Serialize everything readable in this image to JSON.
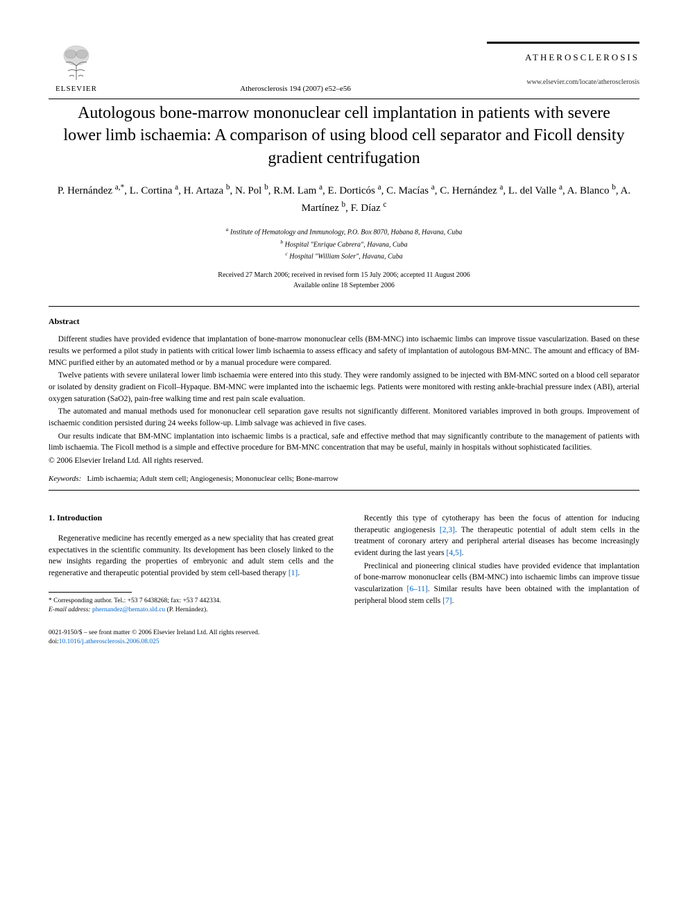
{
  "header": {
    "publisher": "ELSEVIER",
    "journal_name": "ATHEROSCLEROSIS",
    "citation": "Atherosclerosis 194 (2007) e52–e56",
    "url": "www.elsevier.com/locate/atherosclerosis"
  },
  "title": "Autologous bone-marrow mononuclear cell implantation in patients with severe lower limb ischaemia: A comparison of using blood cell separator and Ficoll density gradient centrifugation",
  "authors_html": "P. Hernández <sup>a,*</sup>, L. Cortina <sup>a</sup>, H. Artaza <sup>b</sup>, N. Pol <sup>b</sup>, R.M. Lam <sup>a</sup>, E. Dorticós <sup>a</sup>, C. Macías <sup>a</sup>, C. Hernández <sup>a</sup>, L. del Valle <sup>a</sup>, A. Blanco <sup>b</sup>, A. Martínez <sup>b</sup>, F. Díaz <sup>c</sup>",
  "affiliations": [
    "a Institute of Hematology and Immunology, P.O. Box 8070, Habana 8, Havana, Cuba",
    "b Hospital \"Enrique Cabrera\", Havana, Cuba",
    "c Hospital \"William Soler\", Havana, Cuba"
  ],
  "dates": {
    "history": "Received 27 March 2006; received in revised form 15 July 2006; accepted 11 August 2006",
    "online": "Available online 18 September 2006"
  },
  "abstract": {
    "heading": "Abstract",
    "paragraphs": [
      "Different studies have provided evidence that implantation of bone-marrow mononuclear cells (BM-MNC) into ischaemic limbs can improve tissue vascularization. Based on these results we performed a pilot study in patients with critical lower limb ischaemia to assess efficacy and safety of implantation of autologous BM-MNC. The amount and efficacy of BM-MNC purified either by an automated method or by a manual procedure were compared.",
      "Twelve patients with severe unilateral lower limb ischaemia were entered into this study. They were randomly assigned to be injected with BM-MNC sorted on a blood cell separator or isolated by density gradient on Ficoll–Hypaque. BM-MNC were implanted into the ischaemic legs. Patients were monitored with resting ankle-brachial pressure index (ABI), arterial oxygen saturation (SaO2), pain-free walking time and rest pain scale evaluation.",
      "The automated and manual methods used for mononuclear cell separation gave results not significantly different. Monitored variables improved in both groups. Improvement of ischaemic condition persisted during 24 weeks follow-up. Limb salvage was achieved in five cases.",
      "Our results indicate that BM-MNC implantation into ischaemic limbs is a practical, safe and effective method that may significantly contribute to the management of patients with limb ischaemia. The Ficoll method is a simple and effective procedure for BM-MNC concentration that may be useful, mainly in hospitals without sophisticated facilities."
    ],
    "copyright": "© 2006 Elsevier Ireland Ltd. All rights reserved."
  },
  "keywords": {
    "label": "Keywords:",
    "text": "Limb ischaemia; Adult stem cell; Angiogenesis; Mononuclear cells; Bone-marrow"
  },
  "section1": {
    "heading": "1. Introduction",
    "left_paras": [
      "Regenerative medicine has recently emerged as a new speciality that has created great expectatives in the scientific community. Its development has been closely linked to the new insights regarding the properties of embryonic and adult stem cells and the regenerative and therapeutic potential provided by stem cell-based therapy [1]."
    ],
    "right_paras": [
      "Recently this type of cytotherapy has been the focus of attention for inducing therapeutic angiogenesis [2,3]. The therapeutic potential of adult stem cells in the treatment of coronary artery and peripheral arterial diseases has become increasingly evident during the last years [4,5].",
      "Preclinical and pioneering clinical studies have provided evidence that implantation of bone-marrow mononuclear cells (BM-MNC) into ischaemic limbs can improve tissue vascularization [6–11]. Similar results have been obtained with the implantation of peripheral blood stem cells [7]."
    ]
  },
  "footnote": {
    "corresponding": "* Corresponding author. Tel.: +53 7 6438268; fax: +53 7 442334.",
    "email_label": "E-mail address:",
    "email": "phernandez@hemato.sld.cu",
    "email_attr": "(P. Hernández)."
  },
  "bottom": {
    "issn": "0021-9150/$ – see front matter © 2006 Elsevier Ireland Ltd. All rights reserved.",
    "doi_label": "doi:",
    "doi": "10.1016/j.atherosclerosis.2006.08.025"
  },
  "refs": {
    "r1": "[1]",
    "r23": "[2,3]",
    "r45": "[4,5]",
    "r611": "[6–11]",
    "r7": "[7]"
  },
  "colors": {
    "text": "#000000",
    "link": "#0066cc",
    "background": "#ffffff",
    "logo_orange": "#e67817"
  }
}
